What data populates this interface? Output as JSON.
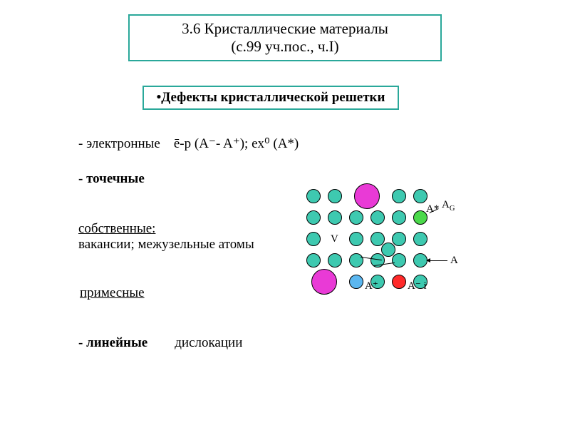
{
  "title": {
    "line1": "3.6 Кристаллические материалы",
    "line2": "(с.99 уч.пос., ч.I)",
    "border_color": "#2aa89a"
  },
  "subheader": {
    "text": "•Дефекты кристаллической решетки",
    "border_color": "#2aa89a"
  },
  "lines": {
    "electronic_label": "- электронные",
    "electronic_formula": "ē-p (A⁻- A⁺); ex⁰ (A*)",
    "point": "- точечные",
    "intrinsic": "собственные:",
    "intrinsic_desc": "вакансии; межузельные атомы",
    "impurity": "примесные",
    "linear_label": "- линейные",
    "linear_desc": "дислокации"
  },
  "lattice": {
    "cols": 6,
    "rows": 5,
    "spacing": 30,
    "atom_r": 10,
    "atom_color": "#3ec9b0",
    "big_r": 18,
    "big_color": "#e93ad6",
    "gas_color": "#4bd94b",
    "neg_color": "#ff2a2a",
    "mid_color": "#5bb7f0",
    "labels": {
      "V": "V",
      "A": "A",
      "Aplus": "A⁺",
      "Aminus_i": "A⁻ i",
      "Astar": "A*",
      "AG": "A_G"
    },
    "big_positions": [
      {
        "col": 2.5,
        "row": 0
      },
      {
        "col": 0.5,
        "row": 4
      }
    ],
    "vacancy": {
      "col": 1,
      "row": 2
    },
    "interstitial": {
      "col": 3.5,
      "row": 2.5
    },
    "gas": {
      "col": 5,
      "row": 1
    },
    "mid": {
      "col": 2,
      "row": 4
    },
    "neg": {
      "col": 4,
      "row": 4
    }
  },
  "colors": {
    "text": "#000000",
    "bg": "#ffffff"
  }
}
